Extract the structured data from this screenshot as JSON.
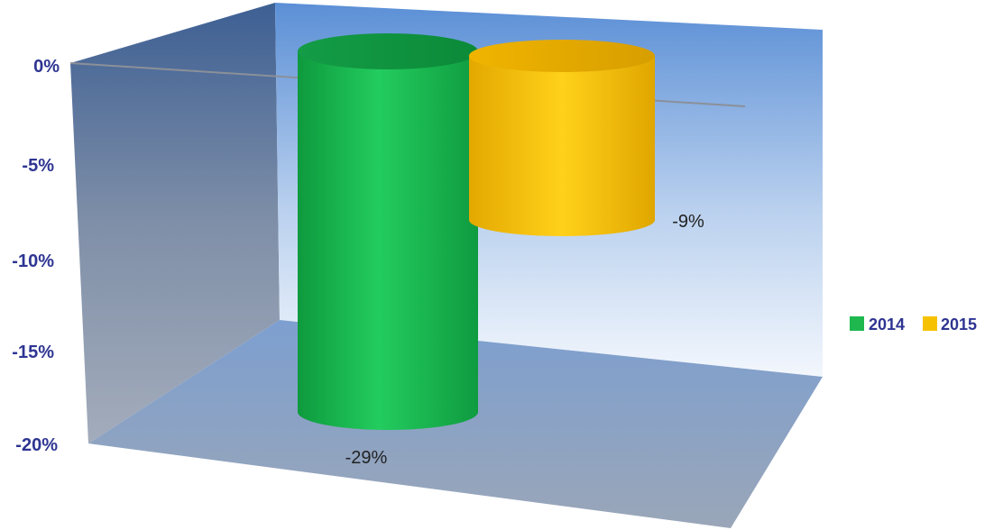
{
  "chart_data": {
    "type": "bar",
    "style": "3d-cylinder",
    "categories": [
      "2014",
      "2015"
    ],
    "values": [
      -29,
      -9
    ],
    "colors": {
      "2014": "#1eb84f",
      "2015": "#f6c200"
    },
    "data_labels": [
      "-29%",
      "-9%"
    ],
    "ylim": [
      -20,
      0
    ],
    "yticks": [
      0,
      -5,
      -10,
      -15,
      -20
    ],
    "ytick_labels": [
      "0%",
      "-5%",
      "-10%",
      "-15%",
      "-20%"
    ],
    "tick_label_color": "#2e3592",
    "grid": false,
    "legend": {
      "position": "right",
      "entries": [
        "2014",
        "2015"
      ]
    }
  }
}
